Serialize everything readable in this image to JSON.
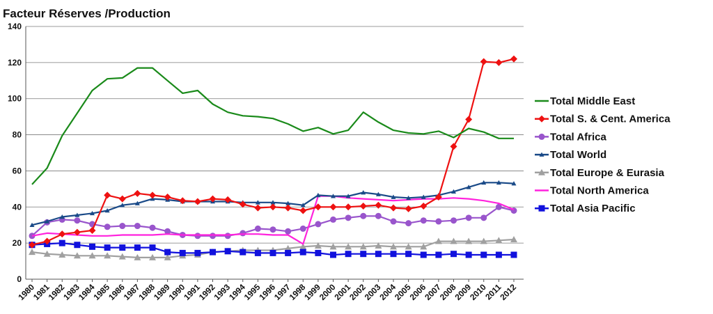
{
  "chart_data": {
    "type": "line",
    "title": "Facteur Réserves /Production",
    "xlabel": "",
    "ylabel": "",
    "ylim": [
      0,
      140
    ],
    "yticks": [
      0,
      20,
      40,
      60,
      80,
      100,
      120,
      140
    ],
    "grid": "horizontal",
    "legend_position": "right",
    "categories": [
      "1980",
      "1981",
      "1982",
      "1983",
      "1984",
      "1985",
      "1986",
      "1987",
      "1988",
      "1989",
      "1990",
      "1991",
      "1992",
      "1993",
      "1994",
      "1995",
      "1996",
      "1997",
      "1998",
      "1999",
      "2000",
      "2001",
      "2002",
      "2003",
      "2004",
      "2005",
      "2006",
      "2007",
      "2008",
      "2009",
      "2010",
      "2011",
      "2012"
    ],
    "series": [
      {
        "name": "Total Middle East",
        "color": "#1a8a1a",
        "marker": "none",
        "values": [
          52.5,
          61.5,
          79.5,
          92,
          104.5,
          111,
          111.5,
          117,
          117,
          110,
          103,
          104.5,
          97,
          92.5,
          90.5,
          90,
          89,
          86,
          82,
          84,
          80.5,
          82.5,
          92.5,
          87,
          82.5,
          81,
          80.5,
          82,
          78.5,
          83.5,
          81.5,
          78,
          78
        ]
      },
      {
        "name": "Total S. & Cent. America",
        "color": "#ee1111",
        "marker": "diamond",
        "values": [
          19,
          21,
          25,
          26,
          27,
          46.5,
          44.5,
          47.5,
          46.5,
          45.5,
          43.5,
          43,
          44.5,
          44,
          41.5,
          39.5,
          40,
          39.5,
          38,
          40,
          40,
          40,
          40.5,
          41,
          39.5,
          39,
          40.5,
          45.5,
          73.5,
          88.5,
          120.5,
          120,
          122
        ]
      },
      {
        "name": "Total Africa",
        "color": "#9955cc",
        "marker": "circle",
        "values": [
          24,
          31.5,
          33,
          32.5,
          30.5,
          29,
          29.5,
          29.5,
          28.5,
          26.5,
          24.5,
          24,
          24,
          24,
          25.5,
          28,
          27.5,
          26.5,
          28,
          30.5,
          33,
          34,
          35,
          35,
          32,
          31,
          32.5,
          32,
          32.5,
          34,
          34,
          40,
          38
        ]
      },
      {
        "name": "Total World",
        "color": "#1a4a88",
        "marker": "triangle-small",
        "values": [
          30,
          32,
          34.5,
          35.5,
          36.5,
          38,
          41,
          42,
          44.5,
          44,
          43,
          43,
          43,
          43,
          42.5,
          42.5,
          42.5,
          42,
          41,
          46.5,
          46,
          46,
          48,
          47,
          45.5,
          45,
          45.5,
          46.5,
          48.5,
          51,
          53.5,
          53.5,
          53
        ]
      },
      {
        "name": "Total Europe & Eurasia",
        "color": "#a0a0a0",
        "marker": "triangle",
        "values": [
          15,
          14,
          13.5,
          13,
          13,
          13,
          12.5,
          12,
          12,
          12,
          13,
          13.5,
          15,
          15.5,
          16,
          16,
          16,
          17,
          18,
          18.5,
          18,
          18,
          18,
          18.5,
          18,
          18,
          18,
          21,
          21,
          21,
          21,
          21.5,
          22
        ]
      },
      {
        "name": "Total North America",
        "color": "#ff22dd",
        "marker": "none",
        "values": [
          24,
          25.5,
          25,
          24.5,
          24,
          24,
          24.5,
          24.5,
          24.5,
          25,
          24.5,
          24.5,
          24.5,
          24.5,
          25,
          25,
          24.5,
          24.5,
          19.5,
          46,
          46,
          45,
          44.5,
          44,
          43.5,
          44,
          44.5,
          44.5,
          45,
          44.5,
          43.5,
          42,
          38.5
        ]
      },
      {
        "name": "Total Asia Pacific",
        "color": "#1111dd",
        "marker": "square",
        "values": [
          19,
          19.5,
          20,
          19,
          18,
          17.5,
          17.5,
          17.5,
          17.5,
          15,
          14.5,
          14.5,
          15,
          15.5,
          15,
          14.5,
          14.5,
          14.5,
          15,
          14.5,
          13.5,
          14,
          14,
          14,
          14,
          14,
          13.5,
          13.5,
          14,
          13.5,
          13.5,
          13.5,
          13.5
        ]
      }
    ]
  }
}
